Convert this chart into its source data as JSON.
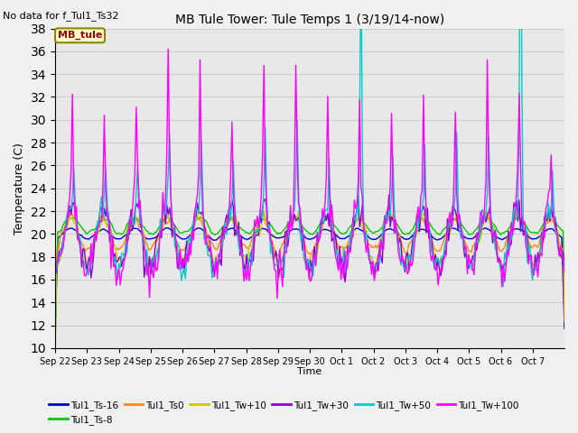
{
  "title": "MB Tule Tower: Tule Temps 1 (3/19/14-now)",
  "annotation": "No data for f_Tul1_Ts32",
  "ylabel": "Temperature (C)",
  "xlabel": "Time",
  "ylim": [
    10,
    38
  ],
  "yticks": [
    10,
    12,
    14,
    16,
    18,
    20,
    22,
    24,
    26,
    28,
    30,
    32,
    34,
    36,
    38
  ],
  "bg_color": "#e8e8e8",
  "series_colors": {
    "Tul1_Ts-16": "#0000cc",
    "Tul1_Ts-8": "#00cc00",
    "Tul1_Ts0": "#ff8800",
    "Tul1_Tw+10": "#cccc00",
    "Tul1_Tw+30": "#8800cc",
    "Tul1_Tw+50": "#00cccc",
    "Tul1_Tw+100": "#ff00ff"
  },
  "xtick_labels": [
    "Sep 22",
    "Sep 23",
    "Sep 24",
    "Sep 25",
    "Sep 26",
    "Sep 27",
    "Sep 28",
    "Sep 29",
    "Sep 30",
    "Oct 1",
    "Oct 2",
    "Oct 3",
    "Oct 4",
    "Oct 5",
    "Oct 6",
    "Oct 7"
  ]
}
